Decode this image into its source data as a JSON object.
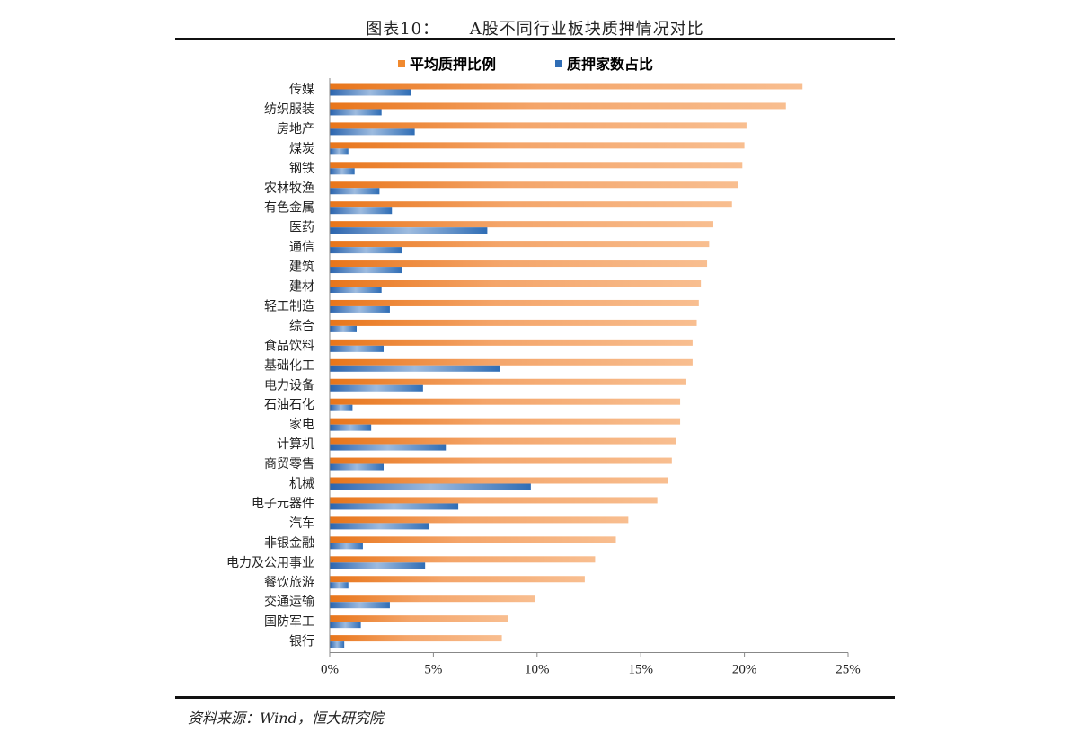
{
  "header": {
    "title": "图表10：     A股不同行业板块质押情况对比"
  },
  "footer": {
    "source": "资料来源：Wind，恒大研究院"
  },
  "colors": {
    "series1": "#F0892E",
    "series1_light": "#F7B98A",
    "series2": "#2F6DB5",
    "series2_light": "#A6C3E2",
    "axis": "#888888"
  },
  "chart_data": {
    "type": "bar",
    "orientation": "horizontal",
    "legend_position": "top",
    "grid": false,
    "categories": [
      "传媒",
      "纺织服装",
      "房地产",
      "煤炭",
      "钢铁",
      "农林牧渔",
      "有色金属",
      "医药",
      "通信",
      "建筑",
      "建材",
      "轻工制造",
      "综合",
      "食品饮料",
      "基础化工",
      "电力设备",
      "石油石化",
      "家电",
      "计算机",
      "商贸零售",
      "机械",
      "电子元器件",
      "汽车",
      "非银金融",
      "电力及公用事业",
      "餐饮旅游",
      "交通运输",
      "国防军工",
      "银行"
    ],
    "series": [
      {
        "name": "平均质押比例",
        "values": [
          22.8,
          22.0,
          20.1,
          20.0,
          19.9,
          19.7,
          19.4,
          18.5,
          18.3,
          18.2,
          17.9,
          17.8,
          17.7,
          17.5,
          17.5,
          17.2,
          16.9,
          16.9,
          16.7,
          16.5,
          16.3,
          15.8,
          14.4,
          13.8,
          12.8,
          12.3,
          9.9,
          8.6,
          8.3
        ]
      },
      {
        "name": "质押家数占比",
        "values": [
          3.9,
          2.5,
          4.1,
          0.9,
          1.2,
          2.4,
          3.0,
          7.6,
          3.5,
          3.5,
          2.5,
          2.9,
          1.3,
          2.6,
          8.2,
          4.5,
          1.1,
          2.0,
          5.6,
          2.6,
          9.7,
          6.2,
          4.8,
          1.6,
          4.6,
          0.9,
          2.9,
          1.5,
          0.7
        ]
      }
    ],
    "xlim": [
      0,
      25
    ],
    "xticks": [
      "0%",
      "5%",
      "10%",
      "15%",
      "20%",
      "25%"
    ],
    "xticks_values": [
      0,
      5,
      10,
      15,
      20,
      25
    ]
  }
}
